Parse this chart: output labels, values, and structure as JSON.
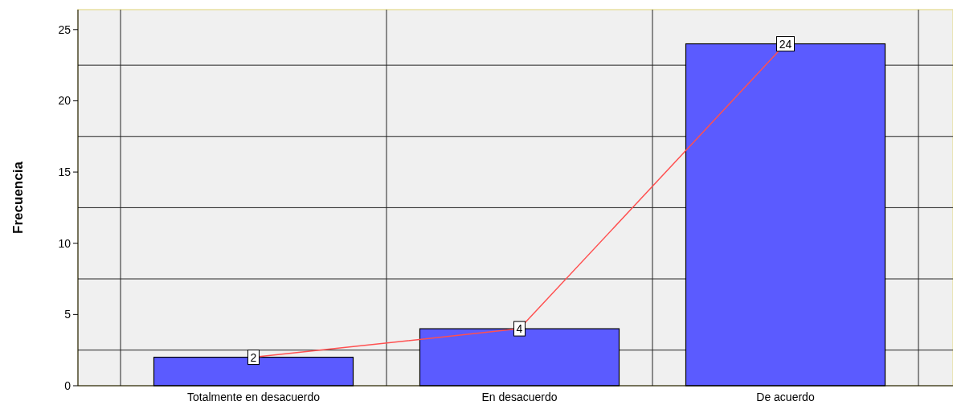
{
  "chart_data": {
    "type": "bar",
    "ylabel": "Frecuencia",
    "categories": [
      "Totalmente en desacuerdo",
      "En desacuerdo",
      "De acuerdo"
    ],
    "series": [
      {
        "color": "#5b5bff",
        "values": [
          2,
          4,
          24
        ]
      },
      {
        "type": "line",
        "color": "#ff5050",
        "marker": "square",
        "values": [
          2,
          4,
          24
        ],
        "value_labels": [
          "2",
          "4",
          "24"
        ]
      }
    ],
    "ylim": [
      0,
      26.4
    ],
    "yticks": [
      0,
      {
        "value": 2.5,
        "label": null
      },
      5,
      {
        "value": 7.5,
        "label": null
      },
      10,
      {
        "value": 12.5,
        "label": null
      },
      15,
      {
        "value": 17.5,
        "label": null
      },
      20,
      {
        "value": 22.5,
        "label": null
      },
      25
    ],
    "grid": true
  }
}
